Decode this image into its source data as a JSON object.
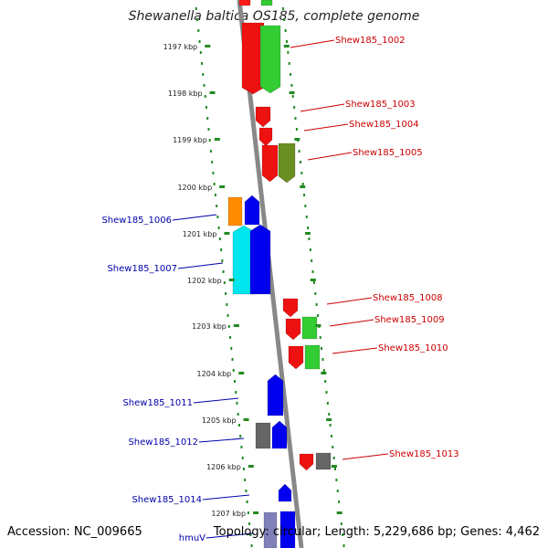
{
  "title": "Shewanella baltica OS185, complete genome",
  "footer": {
    "accession": "Accession: NC_009665",
    "topology": "Topology: circular; Length: 5,229,686 bp; Genes: 4,462"
  },
  "colors": {
    "forward_label": "#cc0000",
    "reverse_label": "#0000aa",
    "tick": "#228b22",
    "axis": "#888888"
  },
  "ticks": [
    "1197 kbp",
    "1198 kbp",
    "1199 kbp",
    "1200 kbp",
    "1201 kbp",
    "1202 kbp",
    "1203 kbp",
    "1204 kbp",
    "1205 kbp",
    "1206 kbp",
    "1207 kbp"
  ],
  "genes": [
    {
      "label": "Shew185_1002",
      "strand": "forward"
    },
    {
      "label": "Shew185_1003",
      "strand": "forward"
    },
    {
      "label": "Shew185_1004",
      "strand": "forward"
    },
    {
      "label": "Shew185_1005",
      "strand": "forward"
    },
    {
      "label": "Shew185_1006",
      "strand": "reverse"
    },
    {
      "label": "Shew185_1007",
      "strand": "reverse"
    },
    {
      "label": "Shew185_1008",
      "strand": "forward"
    },
    {
      "label": "Shew185_1009",
      "strand": "forward"
    },
    {
      "label": "Shew185_1010",
      "strand": "forward"
    },
    {
      "label": "Shew185_1011",
      "strand": "reverse"
    },
    {
      "label": "Shew185_1012",
      "strand": "reverse"
    },
    {
      "label": "Shew185_1013",
      "strand": "forward"
    },
    {
      "label": "Shew185_1014",
      "strand": "reverse"
    },
    {
      "label": "hmuV",
      "strand": "reverse"
    }
  ]
}
